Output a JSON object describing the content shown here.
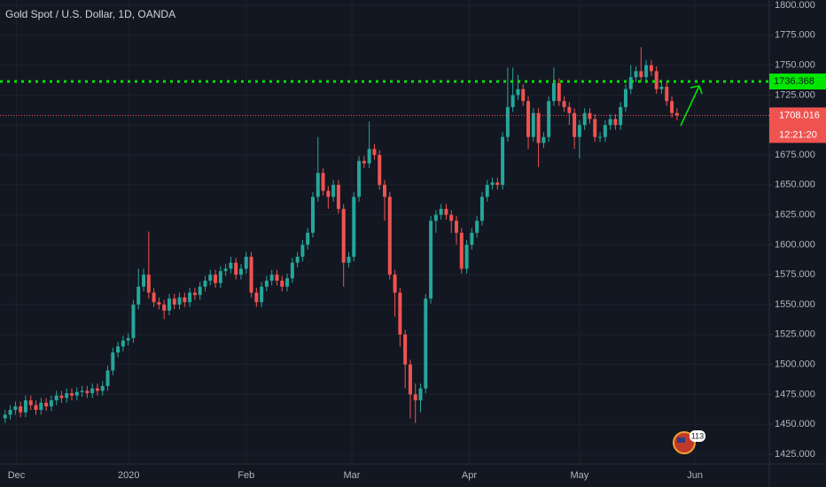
{
  "chart_data": {
    "type": "candlestick",
    "title": "Gold Spot / U.S. Dollar, 1D, OANDA",
    "open": [
      1455,
      1458,
      1462,
      1465,
      1460,
      1470,
      1466,
      1462,
      1468,
      1465,
      1470,
      1474,
      1472,
      1476,
      1474,
      1477,
      1478,
      1476,
      1480,
      1478,
      1482,
      1495,
      1510,
      1515,
      1520,
      1522,
      1550,
      1565,
      1575,
      1560,
      1552,
      1550,
      1545,
      1555,
      1550,
      1556,
      1552,
      1560,
      1558,
      1565,
      1570,
      1575,
      1568,
      1578,
      1580,
      1585,
      1575,
      1580,
      1590,
      1560,
      1552,
      1565,
      1570,
      1575,
      1570,
      1565,
      1572,
      1585,
      1590,
      1600,
      1610,
      1640,
      1660,
      1645,
      1640,
      1650,
      1630,
      1585,
      1590,
      1640,
      1670,
      1668,
      1680,
      1675,
      1650,
      1640,
      1575,
      1560,
      1525,
      1500,
      1475,
      1470,
      1480,
      1555,
      1620,
      1625,
      1630,
      1625,
      1620,
      1610,
      1580,
      1600,
      1610,
      1620,
      1640,
      1650,
      1652,
      1650,
      1690,
      1715,
      1725,
      1730,
      1720,
      1690,
      1710,
      1685,
      1690,
      1720,
      1735,
      1720,
      1715,
      1710,
      1690,
      1700,
      1710,
      1705,
      1690,
      1690,
      1700,
      1705,
      1700,
      1715,
      1730,
      1740,
      1745,
      1740,
      1750,
      1745,
      1730,
      1732,
      1720,
      1710
    ],
    "high": [
      1462,
      1466,
      1469,
      1469,
      1474,
      1474,
      1470,
      1472,
      1472,
      1474,
      1478,
      1478,
      1480,
      1480,
      1481,
      1482,
      1482,
      1484,
      1484,
      1486,
      1499,
      1514,
      1519,
      1524,
      1526,
      1554,
      1580,
      1580,
      1611,
      1564,
      1556,
      1554,
      1559,
      1559,
      1560,
      1560,
      1564,
      1564,
      1569,
      1574,
      1579,
      1579,
      1582,
      1584,
      1590,
      1589,
      1584,
      1594,
      1594,
      1564,
      1569,
      1574,
      1579,
      1579,
      1574,
      1576,
      1589,
      1594,
      1604,
      1614,
      1644,
      1690,
      1664,
      1649,
      1654,
      1654,
      1634,
      1594,
      1644,
      1674,
      1674,
      1703,
      1684,
      1679,
      1654,
      1644,
      1579,
      1564,
      1529,
      1504,
      1484,
      1484,
      1559,
      1624,
      1629,
      1634,
      1634,
      1629,
      1624,
      1614,
      1604,
      1614,
      1624,
      1644,
      1654,
      1656,
      1656,
      1694,
      1748,
      1748,
      1742,
      1734,
      1724,
      1714,
      1714,
      1694,
      1724,
      1748,
      1739,
      1724,
      1719,
      1714,
      1704,
      1714,
      1714,
      1709,
      1694,
      1704,
      1709,
      1709,
      1719,
      1734,
      1750,
      1749,
      1765,
      1754,
      1754,
      1749,
      1738,
      1736,
      1724,
      1714
    ],
    "low": [
      1451,
      1454,
      1458,
      1456,
      1456,
      1462,
      1458,
      1458,
      1461,
      1461,
      1466,
      1468,
      1468,
      1470,
      1470,
      1473,
      1472,
      1472,
      1474,
      1474,
      1478,
      1491,
      1506,
      1511,
      1516,
      1518,
      1546,
      1561,
      1555,
      1548,
      1546,
      1538,
      1541,
      1546,
      1546,
      1548,
      1548,
      1554,
      1554,
      1561,
      1566,
      1564,
      1564,
      1574,
      1576,
      1571,
      1571,
      1576,
      1556,
      1548,
      1548,
      1561,
      1566,
      1566,
      1561,
      1561,
      1568,
      1581,
      1586,
      1596,
      1606,
      1636,
      1641,
      1630,
      1636,
      1626,
      1565,
      1581,
      1586,
      1636,
      1664,
      1664,
      1671,
      1646,
      1620,
      1571,
      1540,
      1515,
      1480,
      1455,
      1451,
      1460,
      1476,
      1551,
      1610,
      1621,
      1621,
      1610,
      1600,
      1576,
      1576,
      1596,
      1606,
      1616,
      1636,
      1646,
      1646,
      1646,
      1686,
      1711,
      1721,
      1716,
      1680,
      1686,
      1665,
      1681,
      1686,
      1716,
      1716,
      1711,
      1700,
      1680,
      1672,
      1696,
      1701,
      1686,
      1686,
      1686,
      1696,
      1696,
      1696,
      1711,
      1726,
      1736,
      1736,
      1736,
      1741,
      1726,
      1726,
      1716,
      1706,
      1704
    ],
    "close": [
      1458,
      1462,
      1465,
      1460,
      1470,
      1466,
      1462,
      1468,
      1465,
      1470,
      1474,
      1472,
      1476,
      1474,
      1477,
      1478,
      1476,
      1480,
      1478,
      1482,
      1495,
      1510,
      1515,
      1520,
      1522,
      1550,
      1565,
      1575,
      1560,
      1552,
      1550,
      1545,
      1555,
      1550,
      1556,
      1552,
      1560,
      1558,
      1565,
      1570,
      1575,
      1568,
      1578,
      1580,
      1585,
      1575,
      1580,
      1590,
      1560,
      1552,
      1565,
      1570,
      1575,
      1570,
      1565,
      1572,
      1585,
      1590,
      1600,
      1610,
      1640,
      1660,
      1645,
      1640,
      1650,
      1630,
      1585,
      1590,
      1640,
      1670,
      1668,
      1680,
      1675,
      1650,
      1640,
      1575,
      1560,
      1525,
      1500,
      1475,
      1470,
      1480,
      1555,
      1620,
      1625,
      1630,
      1625,
      1620,
      1610,
      1580,
      1600,
      1610,
      1620,
      1640,
      1650,
      1652,
      1650,
      1690,
      1715,
      1725,
      1730,
      1720,
      1690,
      1710,
      1685,
      1690,
      1720,
      1735,
      1720,
      1715,
      1710,
      1690,
      1700,
      1710,
      1705,
      1690,
      1690,
      1700,
      1705,
      1700,
      1715,
      1730,
      1740,
      1745,
      1740,
      1750,
      1745,
      1730,
      1732,
      1720,
      1710,
      1708.016
    ],
    "up_color": "#26a69a",
    "down_color": "#ef5350",
    "xlim": [
      -1,
      149
    ],
    "xticks": [
      {
        "value": 2.2,
        "label": "Dec"
      },
      {
        "value": 24.1,
        "label": "2020"
      },
      {
        "value": 47,
        "label": "Feb"
      },
      {
        "value": 67.6,
        "label": "Mar"
      },
      {
        "value": 90.5,
        "label": "Apr"
      },
      {
        "value": 112,
        "label": "May"
      },
      {
        "value": 134.5,
        "label": "Jun"
      }
    ],
    "ylim": [
      1425,
      1800
    ],
    "yticks": [
      {
        "value": 1425,
        "label": "1425.000"
      },
      {
        "value": 1450,
        "label": "1450.000"
      },
      {
        "value": 1475,
        "label": "1475.000"
      },
      {
        "value": 1500,
        "label": "1500.000"
      },
      {
        "value": 1525,
        "label": "1525.000"
      },
      {
        "value": 1550,
        "label": "1550.000"
      },
      {
        "value": 1575,
        "label": "1575.000"
      },
      {
        "value": 1600,
        "label": "1600.000"
      },
      {
        "value": 1625,
        "label": "1625.000"
      },
      {
        "value": 1650,
        "label": "1650.000"
      },
      {
        "value": 1675,
        "label": "1675.000"
      },
      {
        "value": 1700,
        "label": "1700.000"
      },
      {
        "value": 1725,
        "label": "1725.000"
      },
      {
        "value": 1750,
        "label": "1750.000"
      },
      {
        "value": 1775,
        "label": "1775.000"
      },
      {
        "value": 1800,
        "label": "1800.000"
      }
    ],
    "grid": true,
    "level_line": {
      "value": 1736.368,
      "color": "#00e600"
    },
    "last_price": {
      "value": 1708.016,
      "color": "#ef5350",
      "countdown": "12:21:20"
    },
    "badge": "113"
  }
}
